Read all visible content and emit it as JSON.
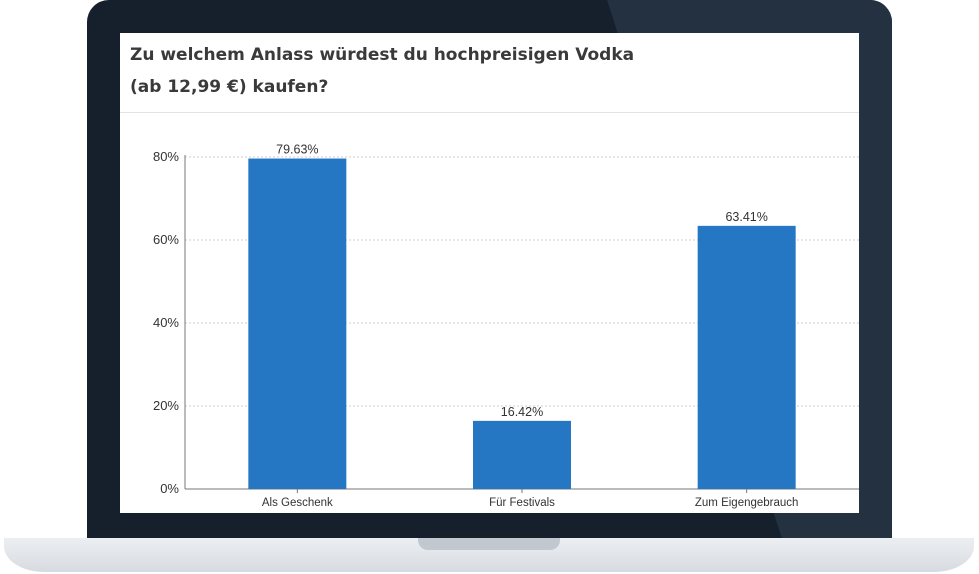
{
  "colors": {
    "bezel": "#15202c",
    "bar": "#2577c4",
    "grid": "#cfcfcf",
    "axis": "#777777"
  },
  "chart_data": {
    "type": "bar",
    "title_lines": [
      "Zu welchem Anlass würdest du hochpreisigen Vodka",
      "(ab 12,99 €) kaufen?"
    ],
    "categories": [
      "Als Geschenk",
      "Für Festivals",
      "Zum Eigengebrauch"
    ],
    "values": [
      79.63,
      16.42,
      63.41
    ],
    "value_labels": [
      "79.63%",
      "16.42%",
      "63.41%"
    ],
    "yticks": [
      0,
      20,
      40,
      60,
      80
    ],
    "ytick_labels": [
      "0%",
      "20%",
      "40%",
      "60%",
      "80%"
    ],
    "ylim": [
      0,
      80
    ],
    "xlabel": "",
    "ylabel": "",
    "grid": true,
    "legend": "none"
  }
}
